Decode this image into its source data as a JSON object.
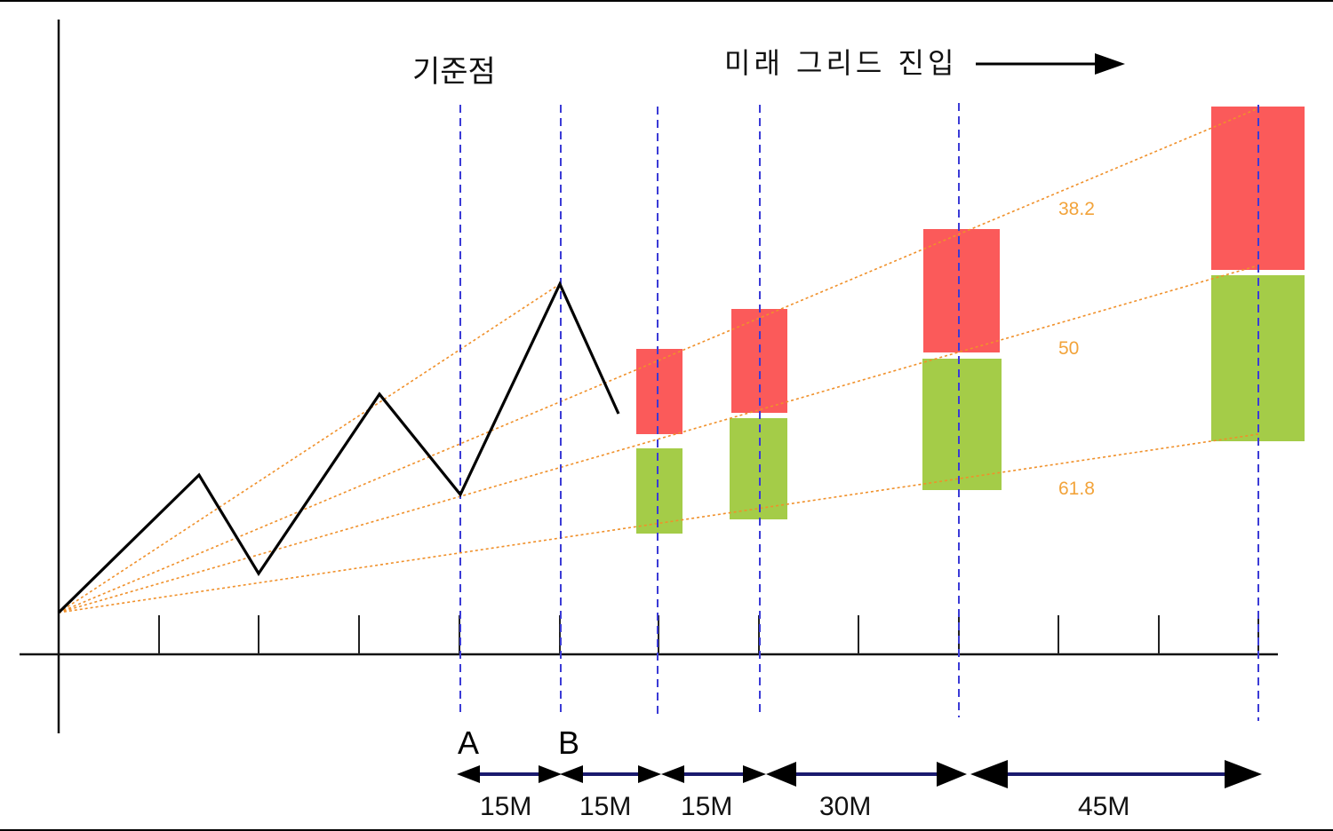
{
  "header": {
    "reference_point": "기준점",
    "future_grid_entry": "미래 그리드 진입"
  },
  "points": {
    "a": "A",
    "b": "B"
  },
  "fib_levels": [
    "38.2",
    "50",
    "61.8"
  ],
  "durations": [
    "15M",
    "15M",
    "15M",
    "30M",
    "45M"
  ],
  "colors": {
    "sell_zone": "#fb5a5a",
    "buy_zone": "#a4cc48",
    "vertical_guides": "#3b3bd6",
    "fan_lines": "#f0902a",
    "fib_labels": "#f2a33a"
  }
}
